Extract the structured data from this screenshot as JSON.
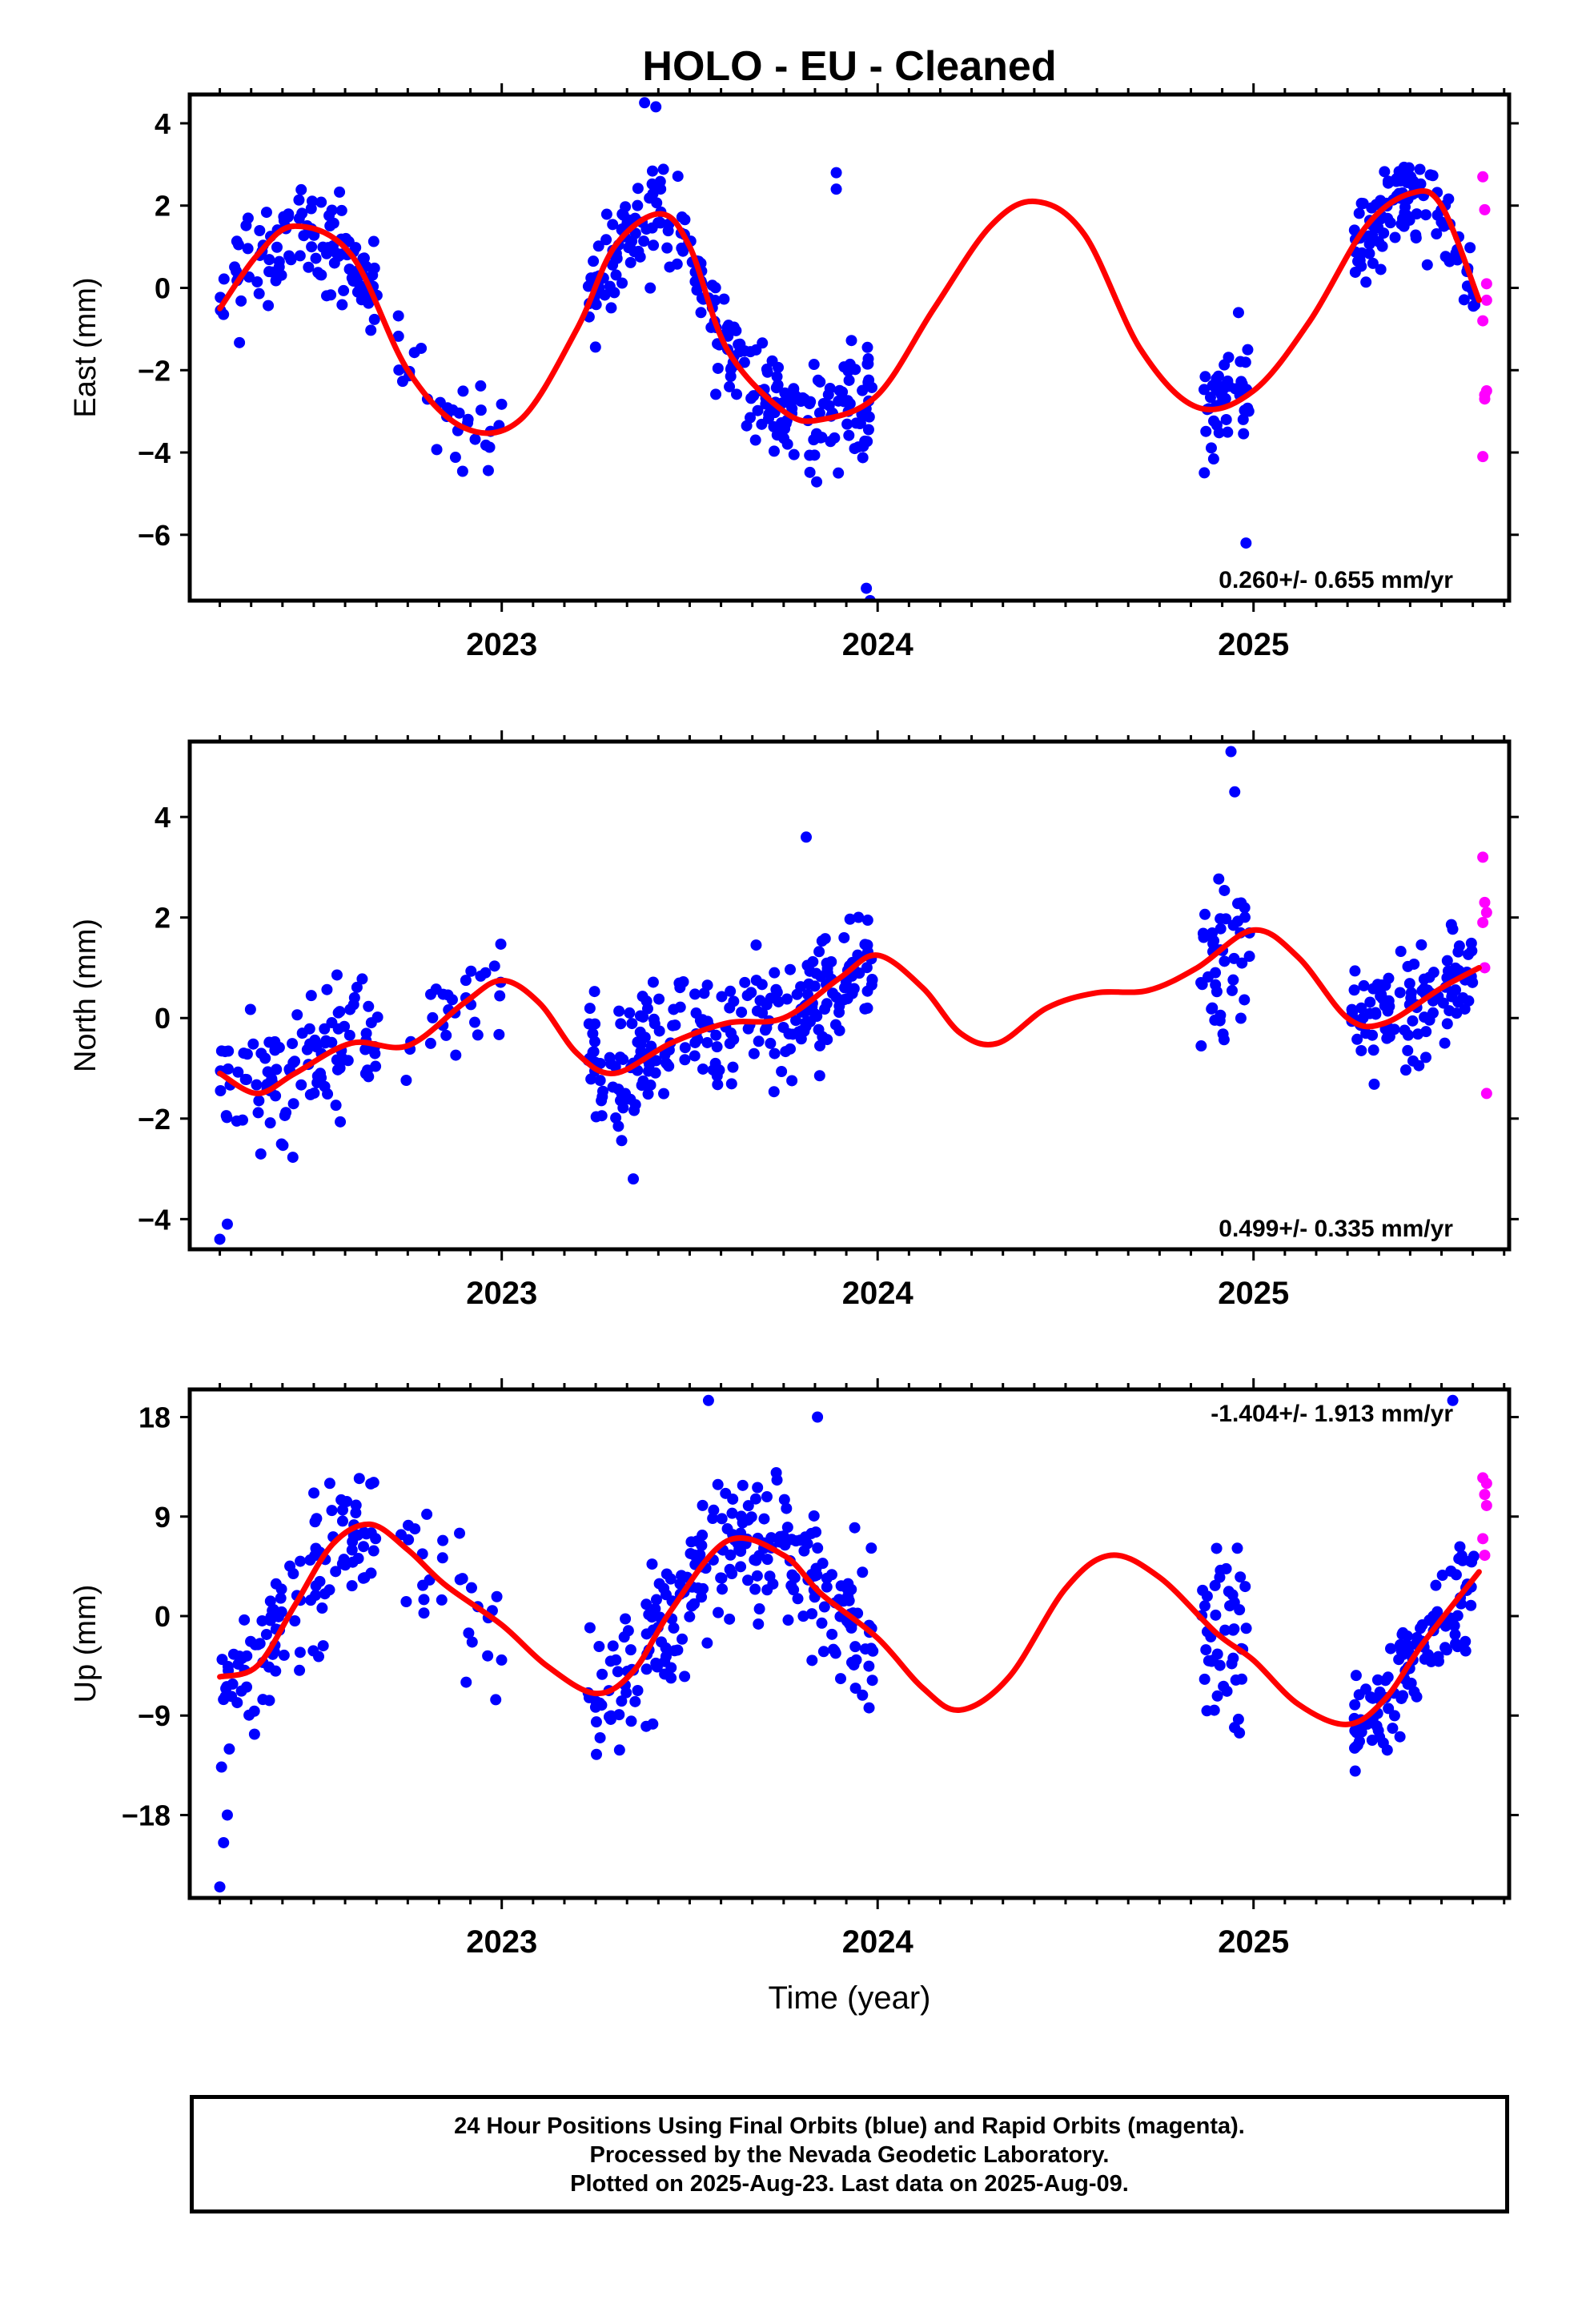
{
  "chart_data": [
    {
      "type": "scatter",
      "title": "HOLO  - EU - Cleaned",
      "ylabel": "East (mm)",
      "xlabel": "",
      "xlim": [
        2022.17,
        2025.68
      ],
      "ylim": [
        -7.6,
        4.7
      ],
      "yticks": [
        -6,
        -4,
        -2,
        0,
        2,
        4
      ],
      "xticks": [
        2023,
        2024,
        2025
      ],
      "rate_label": "0.260+/- 0.655 mm/yr",
      "rate_position": "bottom-right",
      "grid": false,
      "model_color": "#ff0000",
      "final_color": "#0000ff",
      "rapid_color": "#ff00ff",
      "model_curve": {
        "x": [
          2022.25,
          2022.35,
          2022.45,
          2022.6,
          2022.75,
          2022.9,
          2023.05,
          2023.2,
          2023.3,
          2023.42,
          2023.5,
          2023.6,
          2023.75,
          2023.85,
          2024.0,
          2024.15,
          2024.3,
          2024.42,
          2024.55,
          2024.7,
          2024.85,
          2025.0,
          2025.15,
          2025.3,
          2025.42,
          2025.5,
          2025.6
        ],
        "y": [
          -0.5,
          0.8,
          1.5,
          0.8,
          -2.0,
          -3.4,
          -3.2,
          -1.0,
          1.0,
          1.8,
          1.0,
          -1.5,
          -3.0,
          -3.2,
          -2.6,
          -0.5,
          1.5,
          2.1,
          1.3,
          -1.5,
          -2.9,
          -2.5,
          -0.8,
          1.5,
          2.3,
          2.0,
          -0.3
        ]
      },
      "final_segments": [
        {
          "x0": 2022.25,
          "x1": 2022.67,
          "n": 110,
          "sd": 0.9
        },
        {
          "x0": 2022.72,
          "x1": 2023.0,
          "n": 30,
          "sd": 0.8
        },
        {
          "x0": 2023.23,
          "x1": 2023.77,
          "n": 170,
          "sd": 0.9
        },
        {
          "x0": 2023.77,
          "x1": 2023.99,
          "n": 75,
          "sd": 1.0
        },
        {
          "x0": 2024.86,
          "x1": 2024.99,
          "n": 45,
          "sd": 0.9
        },
        {
          "x0": 2025.26,
          "x1": 2025.59,
          "n": 110,
          "sd": 0.7
        }
      ],
      "rapid_points": {
        "x": [
          2025.61,
          2025.615,
          2025.62,
          2025.61,
          2025.615,
          2025.62,
          2025.61,
          2025.62,
          2025.615
        ],
        "y": [
          2.7,
          1.9,
          -0.3,
          -0.8,
          -2.6,
          -2.5,
          -4.1,
          0.1,
          -2.7
        ]
      },
      "extra_points": {
        "x": [
          2023.89,
          2023.89,
          2023.97,
          2023.98,
          2024.98,
          2024.96,
          2023.38,
          2023.41
        ],
        "y": [
          2.8,
          2.4,
          -7.3,
          -7.6,
          -6.2,
          -0.6,
          4.5,
          4.4
        ]
      }
    },
    {
      "type": "scatter",
      "title": "",
      "ylabel": "North (mm)",
      "xlabel": "",
      "xlim": [
        2022.17,
        2025.68
      ],
      "ylim": [
        -4.6,
        5.5
      ],
      "yticks": [
        -4,
        -2,
        0,
        2,
        4
      ],
      "xticks": [
        2023,
        2024,
        2025
      ],
      "rate_label": "0.499+/- 0.335 mm/yr",
      "rate_position": "bottom-right",
      "grid": false,
      "model_color": "#ff0000",
      "final_color": "#0000ff",
      "rapid_color": "#ff00ff",
      "model_curve": {
        "x": [
          2022.25,
          2022.35,
          2022.45,
          2022.6,
          2022.75,
          2022.9,
          2023.0,
          2023.1,
          2023.2,
          2023.3,
          2023.45,
          2023.6,
          2023.75,
          2023.9,
          2024.0,
          2024.12,
          2024.22,
          2024.32,
          2024.45,
          2024.58,
          2024.72,
          2024.85,
          2025.0,
          2025.12,
          2025.25,
          2025.35,
          2025.5,
          2025.6
        ],
        "y": [
          -1.1,
          -1.5,
          -1.1,
          -0.5,
          -0.55,
          0.3,
          0.75,
          0.3,
          -0.7,
          -1.1,
          -0.5,
          -0.1,
          0.0,
          0.8,
          1.25,
          0.6,
          -0.3,
          -0.5,
          0.2,
          0.5,
          0.55,
          1.0,
          1.75,
          1.2,
          0.0,
          -0.1,
          0.6,
          1.0
        ]
      },
      "final_segments": [
        {
          "x0": 2022.25,
          "x1": 2022.67,
          "n": 110,
          "sd": 0.9
        },
        {
          "x0": 2022.72,
          "x1": 2023.0,
          "n": 28,
          "sd": 0.8
        },
        {
          "x0": 2023.23,
          "x1": 2023.99,
          "n": 240,
          "sd": 0.9
        },
        {
          "x0": 2024.86,
          "x1": 2024.99,
          "n": 45,
          "sd": 1.1
        },
        {
          "x0": 2025.26,
          "x1": 2025.59,
          "n": 110,
          "sd": 0.8
        }
      ],
      "rapid_points": {
        "x": [
          2025.61,
          2025.615,
          2025.62,
          2025.61,
          2025.615,
          2025.62
        ],
        "y": [
          3.2,
          2.3,
          2.1,
          1.9,
          1.0,
          -1.5
        ]
      },
      "extra_points": {
        "x": [
          2024.94,
          2024.95,
          2023.81,
          2022.27,
          2022.25,
          2023.35
        ],
        "y": [
          5.3,
          4.5,
          3.6,
          -4.1,
          -4.4,
          -3.2
        ]
      }
    },
    {
      "type": "scatter",
      "title": "",
      "ylabel": "Up (mm)",
      "xlabel": "Time (year)",
      "xlim": [
        2022.17,
        2025.68
      ],
      "ylim": [
        -25.5,
        20.5
      ],
      "yticks": [
        -18,
        -9,
        0,
        9,
        18
      ],
      "xticks": [
        2023,
        2024,
        2025
      ],
      "rate_label": "-1.404+/- 1.913 mm/yr",
      "rate_position": "top-right",
      "grid": false,
      "model_color": "#ff0000",
      "final_color": "#0000ff",
      "rapid_color": "#ff00ff",
      "model_curve": {
        "x": [
          2022.25,
          2022.35,
          2022.45,
          2022.55,
          2022.65,
          2022.75,
          2022.85,
          2023.0,
          2023.12,
          2023.25,
          2023.35,
          2023.45,
          2023.6,
          2023.75,
          2023.85,
          2024.0,
          2024.12,
          2024.22,
          2024.35,
          2024.5,
          2024.62,
          2024.75,
          2024.9,
          2025.0,
          2025.12,
          2025.25,
          2025.35,
          2025.45,
          2025.6
        ],
        "y": [
          -5.5,
          -4.5,
          1.0,
          6.5,
          8.3,
          6.0,
          2.8,
          -0.8,
          -4.5,
          -7.0,
          -5.0,
          0.5,
          6.8,
          5.5,
          2.0,
          -2.0,
          -6.5,
          -8.5,
          -5.5,
          2.5,
          5.5,
          3.5,
          -1.5,
          -4.0,
          -8.0,
          -9.8,
          -7.5,
          -2.5,
          4.0
        ]
      },
      "final_segments": [
        {
          "x0": 2022.25,
          "x1": 2022.67,
          "n": 110,
          "sd": 4.5
        },
        {
          "x0": 2022.72,
          "x1": 2023.0,
          "n": 28,
          "sd": 5.0
        },
        {
          "x0": 2023.23,
          "x1": 2023.99,
          "n": 240,
          "sd": 4.5
        },
        {
          "x0": 2024.86,
          "x1": 2024.99,
          "n": 45,
          "sd": 5.0
        },
        {
          "x0": 2025.26,
          "x1": 2025.59,
          "n": 110,
          "sd": 3.5
        }
      ],
      "rapid_points": {
        "x": [
          2025.61,
          2025.615,
          2025.62,
          2025.61,
          2025.615,
          2025.62
        ],
        "y": [
          12.5,
          11.0,
          10.0,
          7.0,
          5.5,
          12.0
        ]
      },
      "extra_points": {
        "x": [
          2022.25,
          2022.26,
          2022.27,
          2023.55,
          2025.53,
          2023.84
        ],
        "y": [
          -24.5,
          -20.5,
          -18.0,
          19.5,
          19.5,
          18.0
        ]
      }
    }
  ],
  "footer": {
    "line1": "24 Hour Positions Using Final Orbits (blue) and Rapid Orbits (magenta).",
    "line2": "Processed by the Nevada Geodetic Laboratory.",
    "line3": "Plotted on 2025-Aug-23. Last data on 2025-Aug-09."
  }
}
